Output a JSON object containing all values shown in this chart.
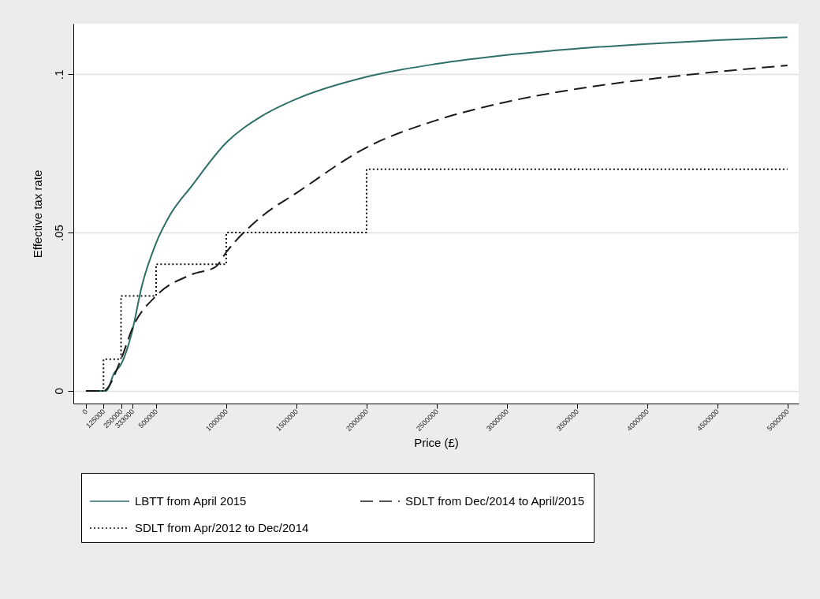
{
  "chart_data": {
    "type": "line",
    "xlabel": "Price (£)",
    "ylabel": "Effective tax rate",
    "xlim": [
      -90000,
      5080000
    ],
    "ylim": [
      -0.004,
      0.116
    ],
    "xticks": [
      0,
      125000,
      250000,
      333000,
      500000,
      1000000,
      1500000,
      2000000,
      2500000,
      3000000,
      3500000,
      4000000,
      4500000,
      5000000
    ],
    "yticks": [
      0,
      {
        "value": 0.05,
        "label": ".05"
      },
      {
        "value": 0.1,
        "label": ".1"
      }
    ],
    "grid": "y",
    "legend": "bottom",
    "marker": "none",
    "series": [
      {
        "name": "LBTT from April 2015",
        "color": "#2e6f68",
        "line_style": "solid",
        "x": [
          0,
          145000,
          200000,
          250000,
          325000,
          400000,
          500000,
          600000,
          750000,
          1000000,
          1250000,
          1500000,
          2000000,
          2500000,
          3000000,
          3500000,
          4000000,
          4500000,
          5000000
        ],
        "values": [
          0,
          0,
          0.0055,
          0.0084,
          0.018,
          0.0334,
          0.0467,
          0.0556,
          0.0645,
          0.0784,
          0.0867,
          0.0922,
          0.0992,
          0.1033,
          0.1061,
          0.1081,
          0.1096,
          0.1108,
          0.1117
        ]
      },
      {
        "name": "SDLT from Dec/2014 to April/2015",
        "color": "#1a1a1a",
        "line_style": "dashed",
        "x": [
          0,
          125000,
          250000,
          333000,
          500000,
          750000,
          925000,
          1000000,
          1250000,
          1500000,
          2000000,
          2500000,
          3000000,
          3500000,
          4000000,
          4500000,
          5000000
        ],
        "values": [
          0,
          0,
          0.01,
          0.02,
          0.03,
          0.0367,
          0.0392,
          0.0438,
          0.055,
          0.0625,
          0.0769,
          0.0855,
          0.0913,
          0.0954,
          0.0984,
          0.1008,
          0.1028
        ]
      },
      {
        "name": "SDLT from Apr/2012 to Dec/2014",
        "color": "#111111",
        "type": "step",
        "line_style": "dotted",
        "x": [
          0,
          125000,
          250000,
          500000,
          1000000,
          2000000,
          5000000
        ],
        "values": [
          0,
          0.01,
          0.03,
          0.04,
          0.05,
          0.07,
          0.07
        ]
      }
    ]
  }
}
